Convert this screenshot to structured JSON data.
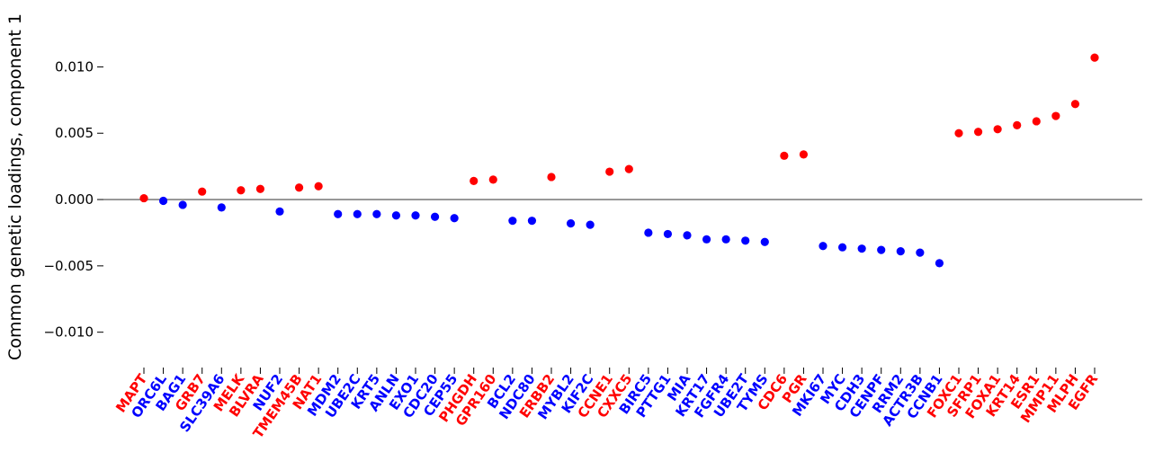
{
  "chart_data": {
    "type": "scatter",
    "title": "",
    "xlabel": "",
    "ylabel": "Common genetic loadings, component 1",
    "ylim": [
      -0.0128,
      0.0145
    ],
    "yticks": [
      -0.01,
      -0.005,
      0.0,
      0.005,
      0.01
    ],
    "ytick_labels": [
      "−0.010",
      "−0.005",
      "0.000",
      "0.005",
      "0.010"
    ],
    "zero_line": true,
    "grid": false,
    "colors": {
      "red": "#ff0000",
      "blue": "#0000ff",
      "zero_line": "#808080"
    },
    "points": [
      {
        "label": "MAPT",
        "y": 0.0001,
        "color": "red"
      },
      {
        "label": "ORC6L",
        "y": -0.0001,
        "color": "blue"
      },
      {
        "label": "BAG1",
        "y": -0.0004,
        "color": "blue"
      },
      {
        "label": "GRB7",
        "y": 0.0006,
        "color": "red"
      },
      {
        "label": "SLC39A6",
        "y": -0.0006,
        "color": "blue"
      },
      {
        "label": "MELK",
        "y": 0.0007,
        "color": "red"
      },
      {
        "label": "BLVRA",
        "y": 0.0008,
        "color": "red"
      },
      {
        "label": "NUF2",
        "y": -0.0009,
        "color": "blue"
      },
      {
        "label": "TMEM45B",
        "y": 0.0009,
        "color": "red"
      },
      {
        "label": "NAT1",
        "y": 0.001,
        "color": "red"
      },
      {
        "label": "MDM2",
        "y": -0.0011,
        "color": "blue"
      },
      {
        "label": "UBE2C",
        "y": -0.0011,
        "color": "blue"
      },
      {
        "label": "KRT5",
        "y": -0.0011,
        "color": "blue"
      },
      {
        "label": "ANLN",
        "y": -0.0012,
        "color": "blue"
      },
      {
        "label": "EXO1",
        "y": -0.0012,
        "color": "blue"
      },
      {
        "label": "CDC20",
        "y": -0.0013,
        "color": "blue"
      },
      {
        "label": "CEP55",
        "y": -0.0014,
        "color": "blue"
      },
      {
        "label": "PHGDH",
        "y": 0.0014,
        "color": "red"
      },
      {
        "label": "GPR160",
        "y": 0.0015,
        "color": "red"
      },
      {
        "label": "BCL2",
        "y": -0.0016,
        "color": "blue"
      },
      {
        "label": "NDC80",
        "y": -0.0016,
        "color": "blue"
      },
      {
        "label": "ERBB2",
        "y": 0.0017,
        "color": "red"
      },
      {
        "label": "MYBL2",
        "y": -0.0018,
        "color": "blue"
      },
      {
        "label": "KIF2C",
        "y": -0.0019,
        "color": "blue"
      },
      {
        "label": "CCNE1",
        "y": 0.0021,
        "color": "red"
      },
      {
        "label": "CXXC5",
        "y": 0.0023,
        "color": "red"
      },
      {
        "label": "BIRC5",
        "y": -0.0025,
        "color": "blue"
      },
      {
        "label": "PTTG1",
        "y": -0.0026,
        "color": "blue"
      },
      {
        "label": "MIA",
        "y": -0.0027,
        "color": "blue"
      },
      {
        "label": "KRT17",
        "y": -0.003,
        "color": "blue"
      },
      {
        "label": "FGFR4",
        "y": -0.003,
        "color": "blue"
      },
      {
        "label": "UBE2T",
        "y": -0.0031,
        "color": "blue"
      },
      {
        "label": "TYMS",
        "y": -0.0032,
        "color": "blue"
      },
      {
        "label": "CDC6",
        "y": 0.0033,
        "color": "red"
      },
      {
        "label": "PGR",
        "y": 0.0034,
        "color": "red"
      },
      {
        "label": "MKI67",
        "y": -0.0035,
        "color": "blue"
      },
      {
        "label": "MYC",
        "y": -0.0036,
        "color": "blue"
      },
      {
        "label": "CDH3",
        "y": -0.0037,
        "color": "blue"
      },
      {
        "label": "CENPF",
        "y": -0.0038,
        "color": "blue"
      },
      {
        "label": "RRM2",
        "y": -0.0039,
        "color": "blue"
      },
      {
        "label": "ACTR3B",
        "y": -0.004,
        "color": "blue"
      },
      {
        "label": "CCNB1",
        "y": -0.0048,
        "color": "blue"
      },
      {
        "label": "FOXC1",
        "y": 0.005,
        "color": "red"
      },
      {
        "label": "SFRP1",
        "y": 0.0051,
        "color": "red"
      },
      {
        "label": "FOXA1",
        "y": 0.0053,
        "color": "red"
      },
      {
        "label": "KRT14",
        "y": 0.0056,
        "color": "red"
      },
      {
        "label": "ESR1",
        "y": 0.0059,
        "color": "red"
      },
      {
        "label": "MMP11",
        "y": 0.0063,
        "color": "red"
      },
      {
        "label": "MLPH",
        "y": 0.0072,
        "color": "red"
      },
      {
        "label": "EGFR",
        "y": 0.0107,
        "color": "red"
      }
    ]
  }
}
